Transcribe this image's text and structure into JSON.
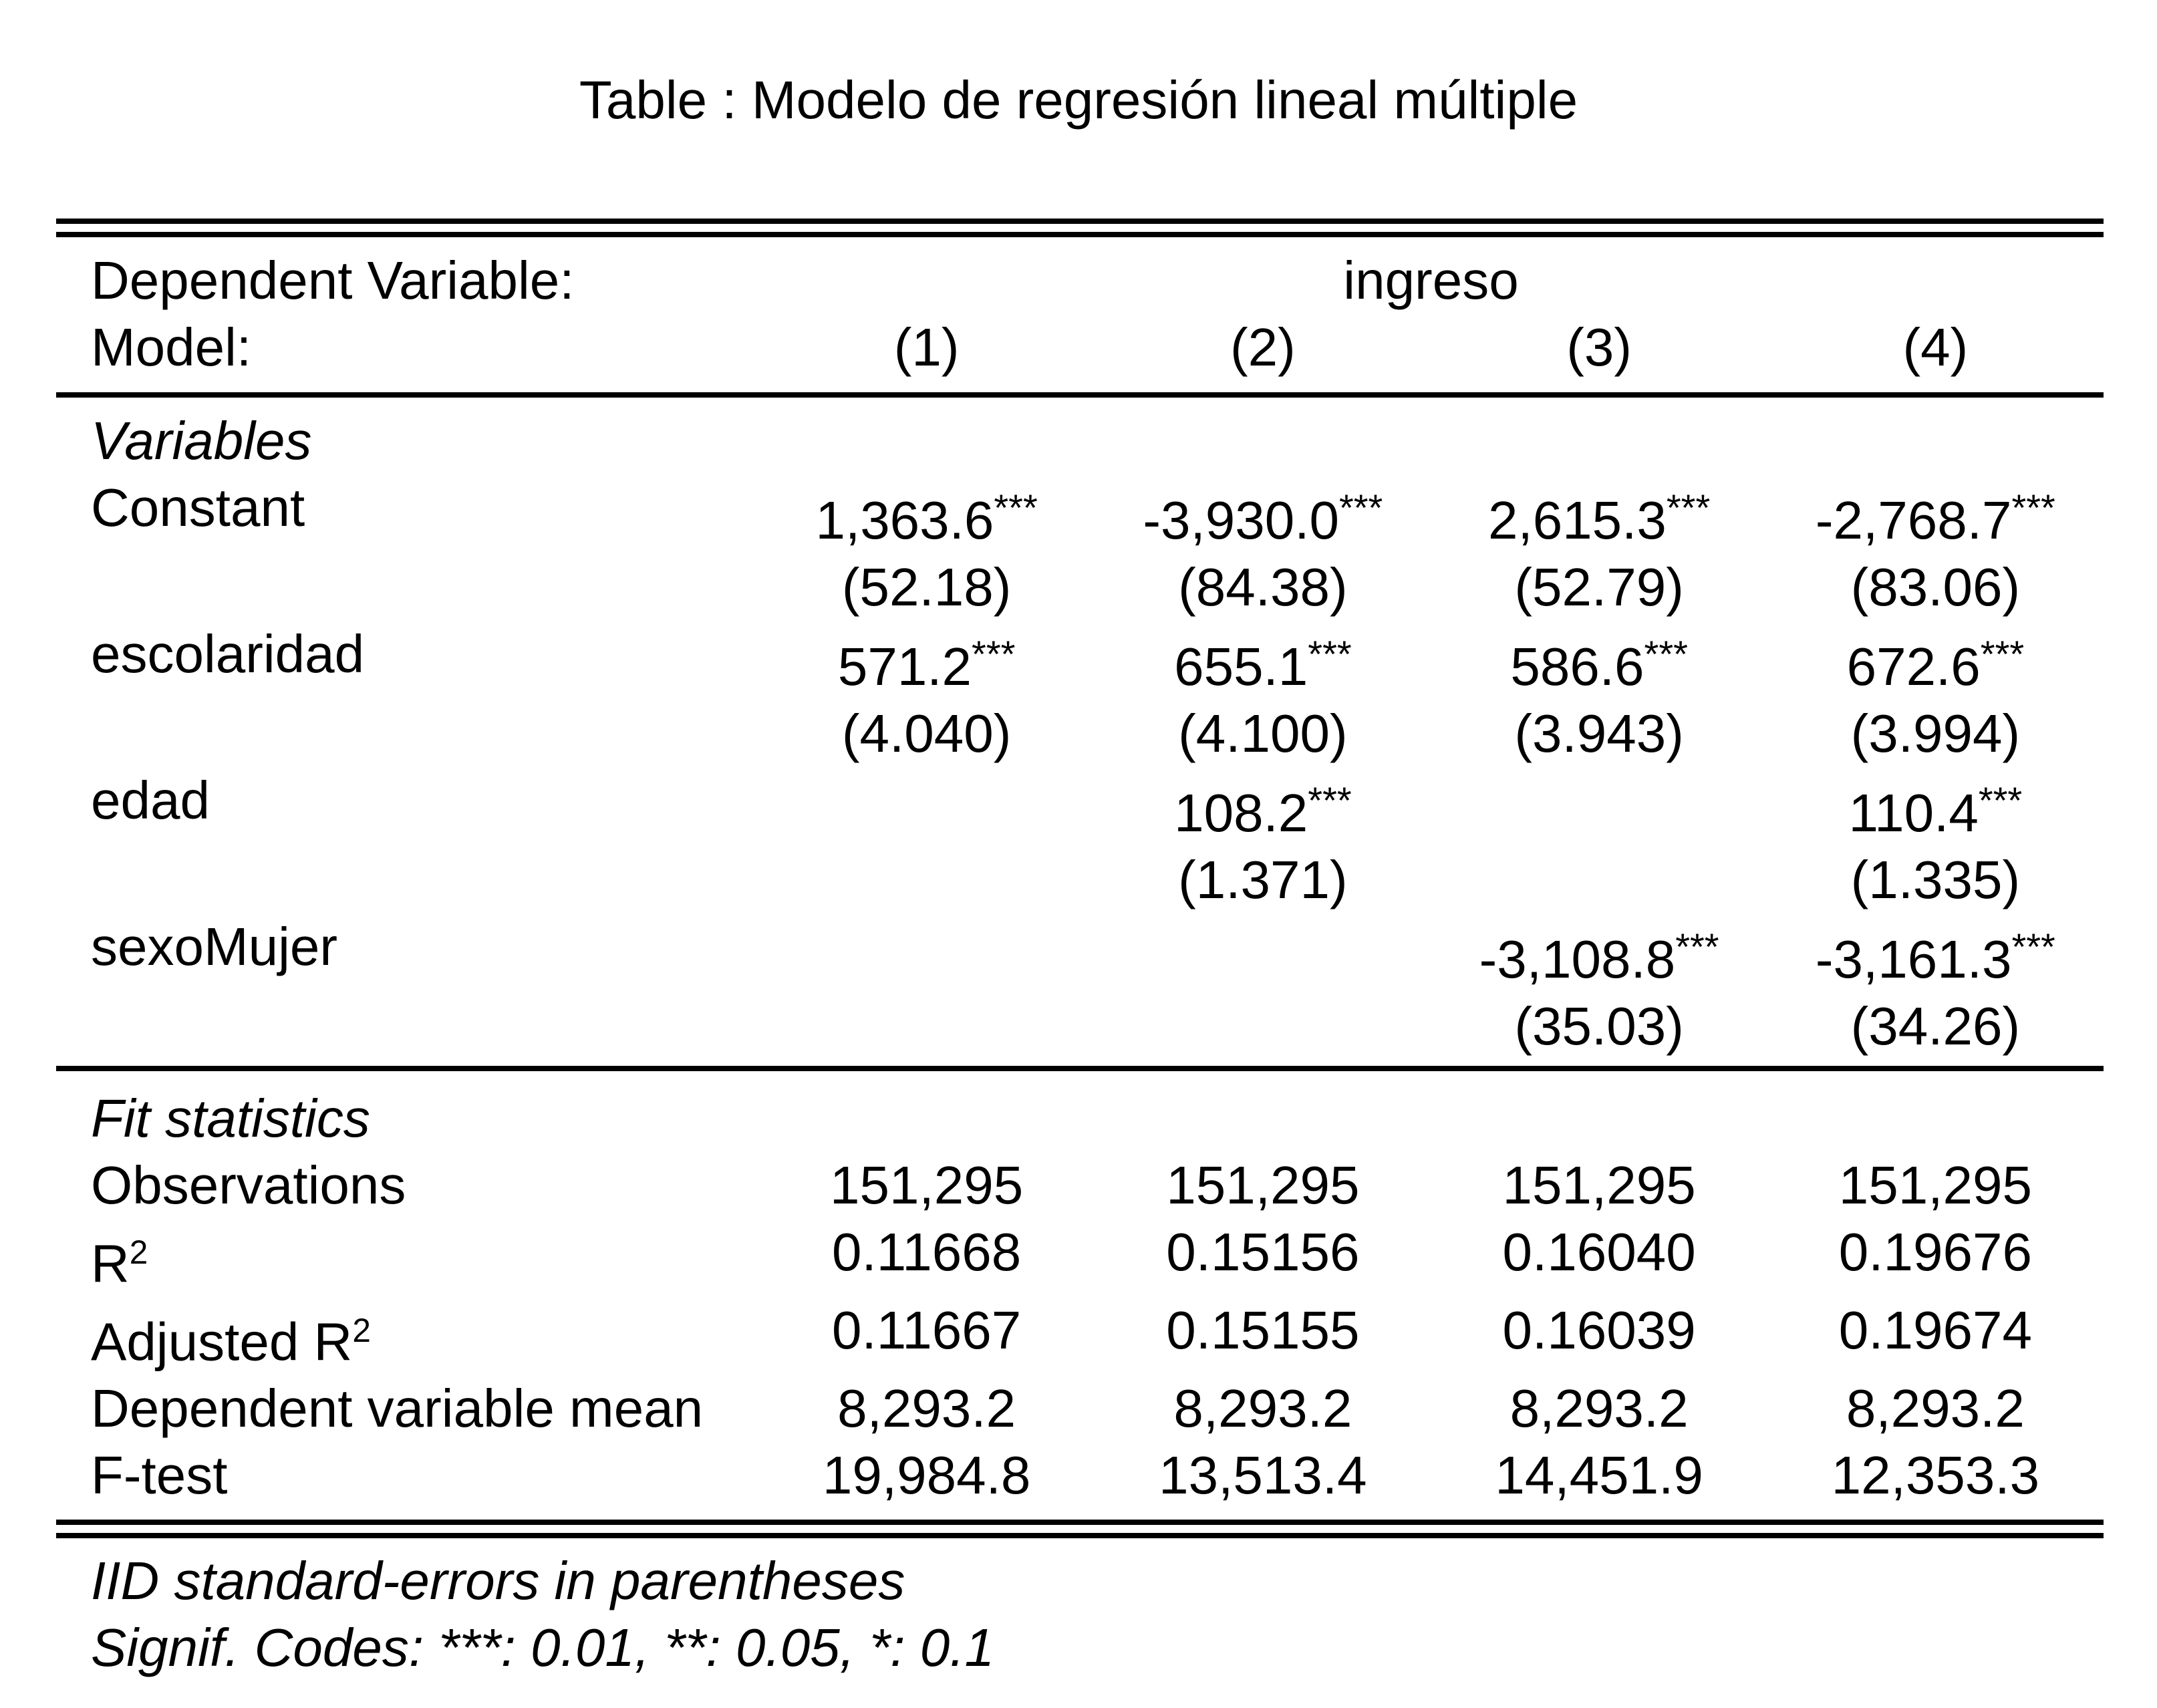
{
  "title": "Table : Modelo de regresión lineal múltiple",
  "header": {
    "dep_var_label": "Dependent Variable:",
    "dep_var_value": "ingreso",
    "model_label": "Model:",
    "models": [
      "(1)",
      "(2)",
      "(3)",
      "(4)"
    ]
  },
  "variables": {
    "section_label": "Variables",
    "rows": [
      {
        "name": "Constant",
        "est": [
          "1,363.6",
          "-3,930.0",
          "2,615.3",
          "-2,768.7"
        ],
        "stars": [
          "***",
          "***",
          "***",
          "***"
        ],
        "se": [
          "(52.18)",
          "(84.38)",
          "(52.79)",
          "(83.06)"
        ]
      },
      {
        "name": "escolaridad",
        "est": [
          "571.2",
          "655.1",
          "586.6",
          "672.6"
        ],
        "stars": [
          "***",
          "***",
          "***",
          "***"
        ],
        "se": [
          "(4.040)",
          "(4.100)",
          "(3.943)",
          "(3.994)"
        ]
      },
      {
        "name": "edad",
        "est": [
          "",
          "108.2",
          "",
          "110.4"
        ],
        "stars": [
          "",
          "***",
          "",
          "***"
        ],
        "se": [
          "",
          "(1.371)",
          "",
          "(1.335)"
        ]
      },
      {
        "name": "sexoMujer",
        "est": [
          "",
          "",
          "-3,108.8",
          "-3,161.3"
        ],
        "stars": [
          "",
          "",
          "***",
          "***"
        ],
        "se": [
          "",
          "",
          "(35.03)",
          "(34.26)"
        ]
      }
    ]
  },
  "fit": {
    "section_label": "Fit statistics",
    "rows": [
      {
        "label": "Observations",
        "values": [
          "151,295",
          "151,295",
          "151,295",
          "151,295"
        ]
      },
      {
        "label": "R",
        "label_sup": "2",
        "values": [
          "0.11668",
          "0.15156",
          "0.16040",
          "0.19676"
        ]
      },
      {
        "label": "Adjusted R",
        "label_sup": "2",
        "values": [
          "0.11667",
          "0.15155",
          "0.16039",
          "0.19674"
        ]
      },
      {
        "label": "Dependent variable mean",
        "values": [
          "8,293.2",
          "8,293.2",
          "8,293.2",
          "8,293.2"
        ]
      },
      {
        "label": "F-test",
        "values": [
          "19,984.8",
          "13,513.4",
          "14,451.9",
          "12,353.3"
        ]
      }
    ]
  },
  "footnotes": [
    "IID standard-errors in parentheses",
    "Signif. Codes: ***: 0.01, **: 0.05, *: 0.1"
  ]
}
